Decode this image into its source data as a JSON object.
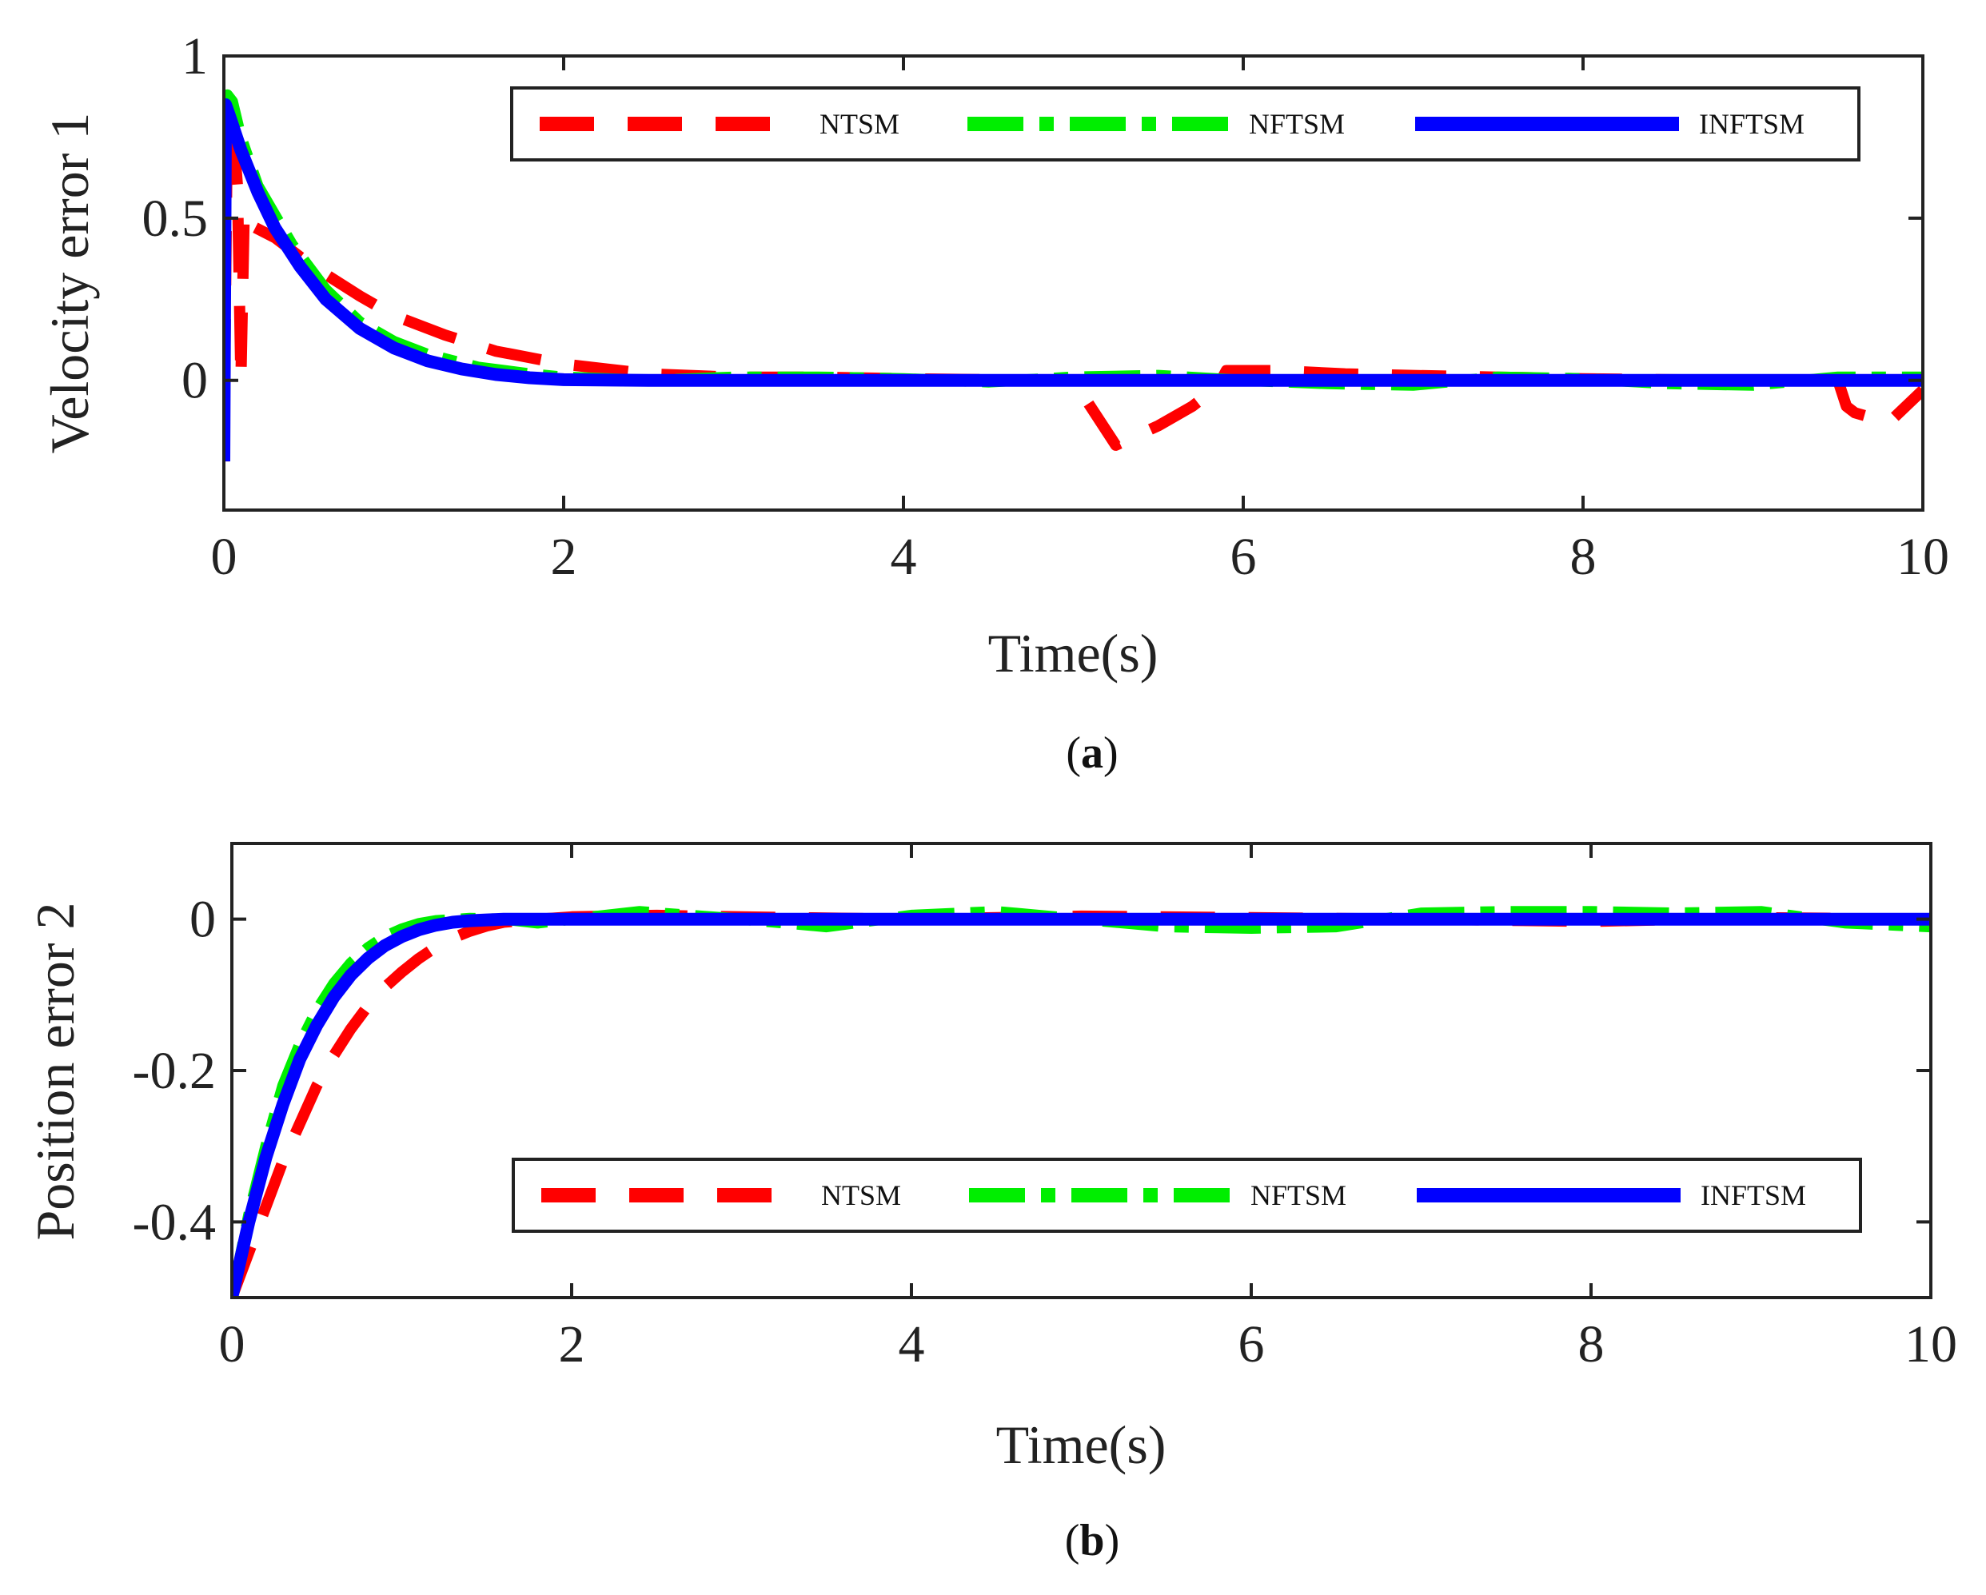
{
  "figure": {
    "caption_a_open": "(",
    "caption_a_letter": "a",
    "caption_a_close": ")",
    "caption_b_open": "(",
    "caption_b_letter": "b",
    "caption_b_close": ")"
  },
  "legend": {
    "ntsm": "NTSM",
    "nftsm": "NFTSM",
    "inftsm": "INFTSM"
  },
  "colors": {
    "ntsm": "#ff0000",
    "nftsm": "#00ee00",
    "inftsm": "#0000ff",
    "axis": "#222222"
  },
  "chart_data": [
    {
      "type": "line",
      "id": "a",
      "title": "",
      "xlabel": "Time(s)",
      "ylabel": "Velocity error 1",
      "xlim": [
        0,
        10
      ],
      "ylim": [
        -0.4,
        1
      ],
      "xticks": [
        0,
        2,
        4,
        6,
        8,
        10
      ],
      "xtick_labels": [
        "0",
        "2",
        "4",
        "6",
        "8",
        "10"
      ],
      "yticks": [
        0,
        0.5,
        1
      ],
      "ytick_labels": [
        "0",
        "0.5",
        "1"
      ],
      "legend_position": "top",
      "series": [
        {
          "name": "NTSM",
          "style": "dashed",
          "x": [
            0,
            0.02,
            0.05,
            0.08,
            0.1,
            0.12,
            0.15,
            0.3,
            0.5,
            0.8,
            1.0,
            1.3,
            1.6,
            2.0,
            2.5,
            3.0,
            3.5,
            4.0,
            4.5,
            5.0,
            5.25,
            5.5,
            5.7,
            5.85,
            5.9,
            6.2,
            6.6,
            7.0,
            7.5,
            8.0,
            8.5,
            9.0,
            9.5,
            9.55,
            9.6,
            9.8,
            10.0
          ],
          "y": [
            -0.25,
            0.78,
            0.8,
            0.6,
            0.0,
            0.52,
            0.48,
            0.44,
            0.36,
            0.26,
            0.2,
            0.14,
            0.09,
            0.05,
            0.02,
            0.01,
            0.01,
            0.005,
            0.002,
            0.0,
            -0.2,
            -0.14,
            -0.08,
            -0.02,
            0.03,
            0.03,
            0.02,
            0.015,
            0.01,
            0.005,
            0.002,
            0.0,
            0.0,
            -0.08,
            -0.1,
            -0.13,
            -0.03
          ]
        },
        {
          "name": "NFTSM",
          "style": "dashdot",
          "x": [
            0,
            0.02,
            0.05,
            0.1,
            0.2,
            0.4,
            0.6,
            0.8,
            1.0,
            1.2,
            1.5,
            1.8,
            2.0,
            2.5,
            3.0,
            3.5,
            4.0,
            4.5,
            5.0,
            5.5,
            6.0,
            6.5,
            7.0,
            7.5,
            8.0,
            8.5,
            9.0,
            9.5,
            10.0
          ],
          "y": [
            0.5,
            0.88,
            0.86,
            0.75,
            0.6,
            0.42,
            0.28,
            0.18,
            0.12,
            0.08,
            0.04,
            0.02,
            0.01,
            0.0,
            0.01,
            0.01,
            0.005,
            -0.005,
            0.01,
            0.015,
            0.0,
            -0.01,
            -0.015,
            0.01,
            0.005,
            -0.01,
            -0.015,
            0.01,
            0.01
          ]
        },
        {
          "name": "INFTSM",
          "style": "solid",
          "x": [
            0,
            0.01,
            0.03,
            0.1,
            0.2,
            0.3,
            0.45,
            0.6,
            0.8,
            1.0,
            1.2,
            1.4,
            1.6,
            1.8,
            2.0,
            2.5,
            3.0,
            4.0,
            5.0,
            6.0,
            7.0,
            8.0,
            9.0,
            10.0
          ],
          "y": [
            -0.25,
            0.85,
            0.82,
            0.71,
            0.58,
            0.47,
            0.35,
            0.25,
            0.16,
            0.1,
            0.06,
            0.035,
            0.018,
            0.008,
            0.002,
            0.0,
            0.0,
            0.0,
            0.0,
            0.0,
            0.0,
            0.0,
            0.0,
            0.0
          ]
        }
      ]
    },
    {
      "type": "line",
      "id": "b",
      "title": "",
      "xlabel": "Time(s)",
      "ylabel": "Position error 2",
      "xlim": [
        0,
        10
      ],
      "ylim": [
        -0.5,
        0.1
      ],
      "xticks": [
        0,
        2,
        4,
        6,
        8,
        10
      ],
      "xtick_labels": [
        "0",
        "2",
        "4",
        "6",
        "8",
        "10"
      ],
      "yticks": [
        -0.4,
        -0.2,
        0
      ],
      "ytick_labels": [
        "-0.4",
        "-0.2",
        "0"
      ],
      "legend_position": "bottom",
      "series": [
        {
          "name": "NTSM",
          "style": "dashed",
          "x": [
            0,
            0.1,
            0.2,
            0.3,
            0.4,
            0.5,
            0.6,
            0.7,
            0.8,
            0.9,
            1.0,
            1.1,
            1.2,
            1.3,
            1.4,
            1.5,
            1.6,
            1.8,
            2.0,
            2.5,
            3.0,
            4.0,
            5.0,
            6.0,
            7.0,
            8.0,
            9.0,
            10.0
          ],
          "y": [
            -0.5,
            -0.44,
            -0.38,
            -0.32,
            -0.27,
            -0.22,
            -0.18,
            -0.145,
            -0.115,
            -0.09,
            -0.07,
            -0.052,
            -0.037,
            -0.025,
            -0.016,
            -0.009,
            -0.004,
            0.0,
            0.003,
            0.005,
            0.003,
            0.0,
            0.004,
            0.002,
            0.0,
            -0.003,
            0.002,
            0.0
          ]
        },
        {
          "name": "NFTSM",
          "style": "dashdot",
          "x": [
            0,
            0.1,
            0.2,
            0.3,
            0.4,
            0.5,
            0.6,
            0.7,
            0.8,
            0.9,
            1.0,
            1.1,
            1.2,
            1.4,
            1.6,
            1.8,
            2.0,
            2.4,
            3.0,
            3.5,
            4.0,
            4.5,
            5.0,
            5.5,
            6.0,
            6.5,
            7.0,
            7.5,
            8.0,
            8.5,
            9.0,
            9.5,
            10.0
          ],
          "y": [
            -0.5,
            -0.39,
            -0.3,
            -0.22,
            -0.165,
            -0.12,
            -0.085,
            -0.058,
            -0.038,
            -0.023,
            -0.013,
            -0.006,
            -0.002,
            0.001,
            0.0,
            -0.005,
            0.0,
            0.01,
            0.0,
            -0.01,
            0.005,
            0.01,
            0.0,
            -0.01,
            -0.012,
            -0.01,
            0.008,
            0.01,
            0.01,
            0.008,
            0.01,
            -0.005,
            -0.01
          ]
        },
        {
          "name": "INFTSM",
          "style": "solid",
          "x": [
            0,
            0.1,
            0.2,
            0.3,
            0.4,
            0.5,
            0.6,
            0.7,
            0.8,
            0.9,
            1.0,
            1.1,
            1.2,
            1.3,
            1.4,
            1.5,
            1.6,
            1.8,
            2.0,
            3.0,
            4.0,
            5.0,
            6.0,
            7.0,
            8.0,
            9.0,
            10.0
          ],
          "y": [
            -0.5,
            -0.4,
            -0.315,
            -0.245,
            -0.185,
            -0.14,
            -0.103,
            -0.074,
            -0.052,
            -0.035,
            -0.023,
            -0.014,
            -0.008,
            -0.004,
            -0.002,
            -0.001,
            0.0,
            0.0,
            0.0,
            0.0,
            0.0,
            0.0,
            0.0,
            0.0,
            0.0,
            0.0,
            0.0
          ]
        }
      ]
    }
  ]
}
